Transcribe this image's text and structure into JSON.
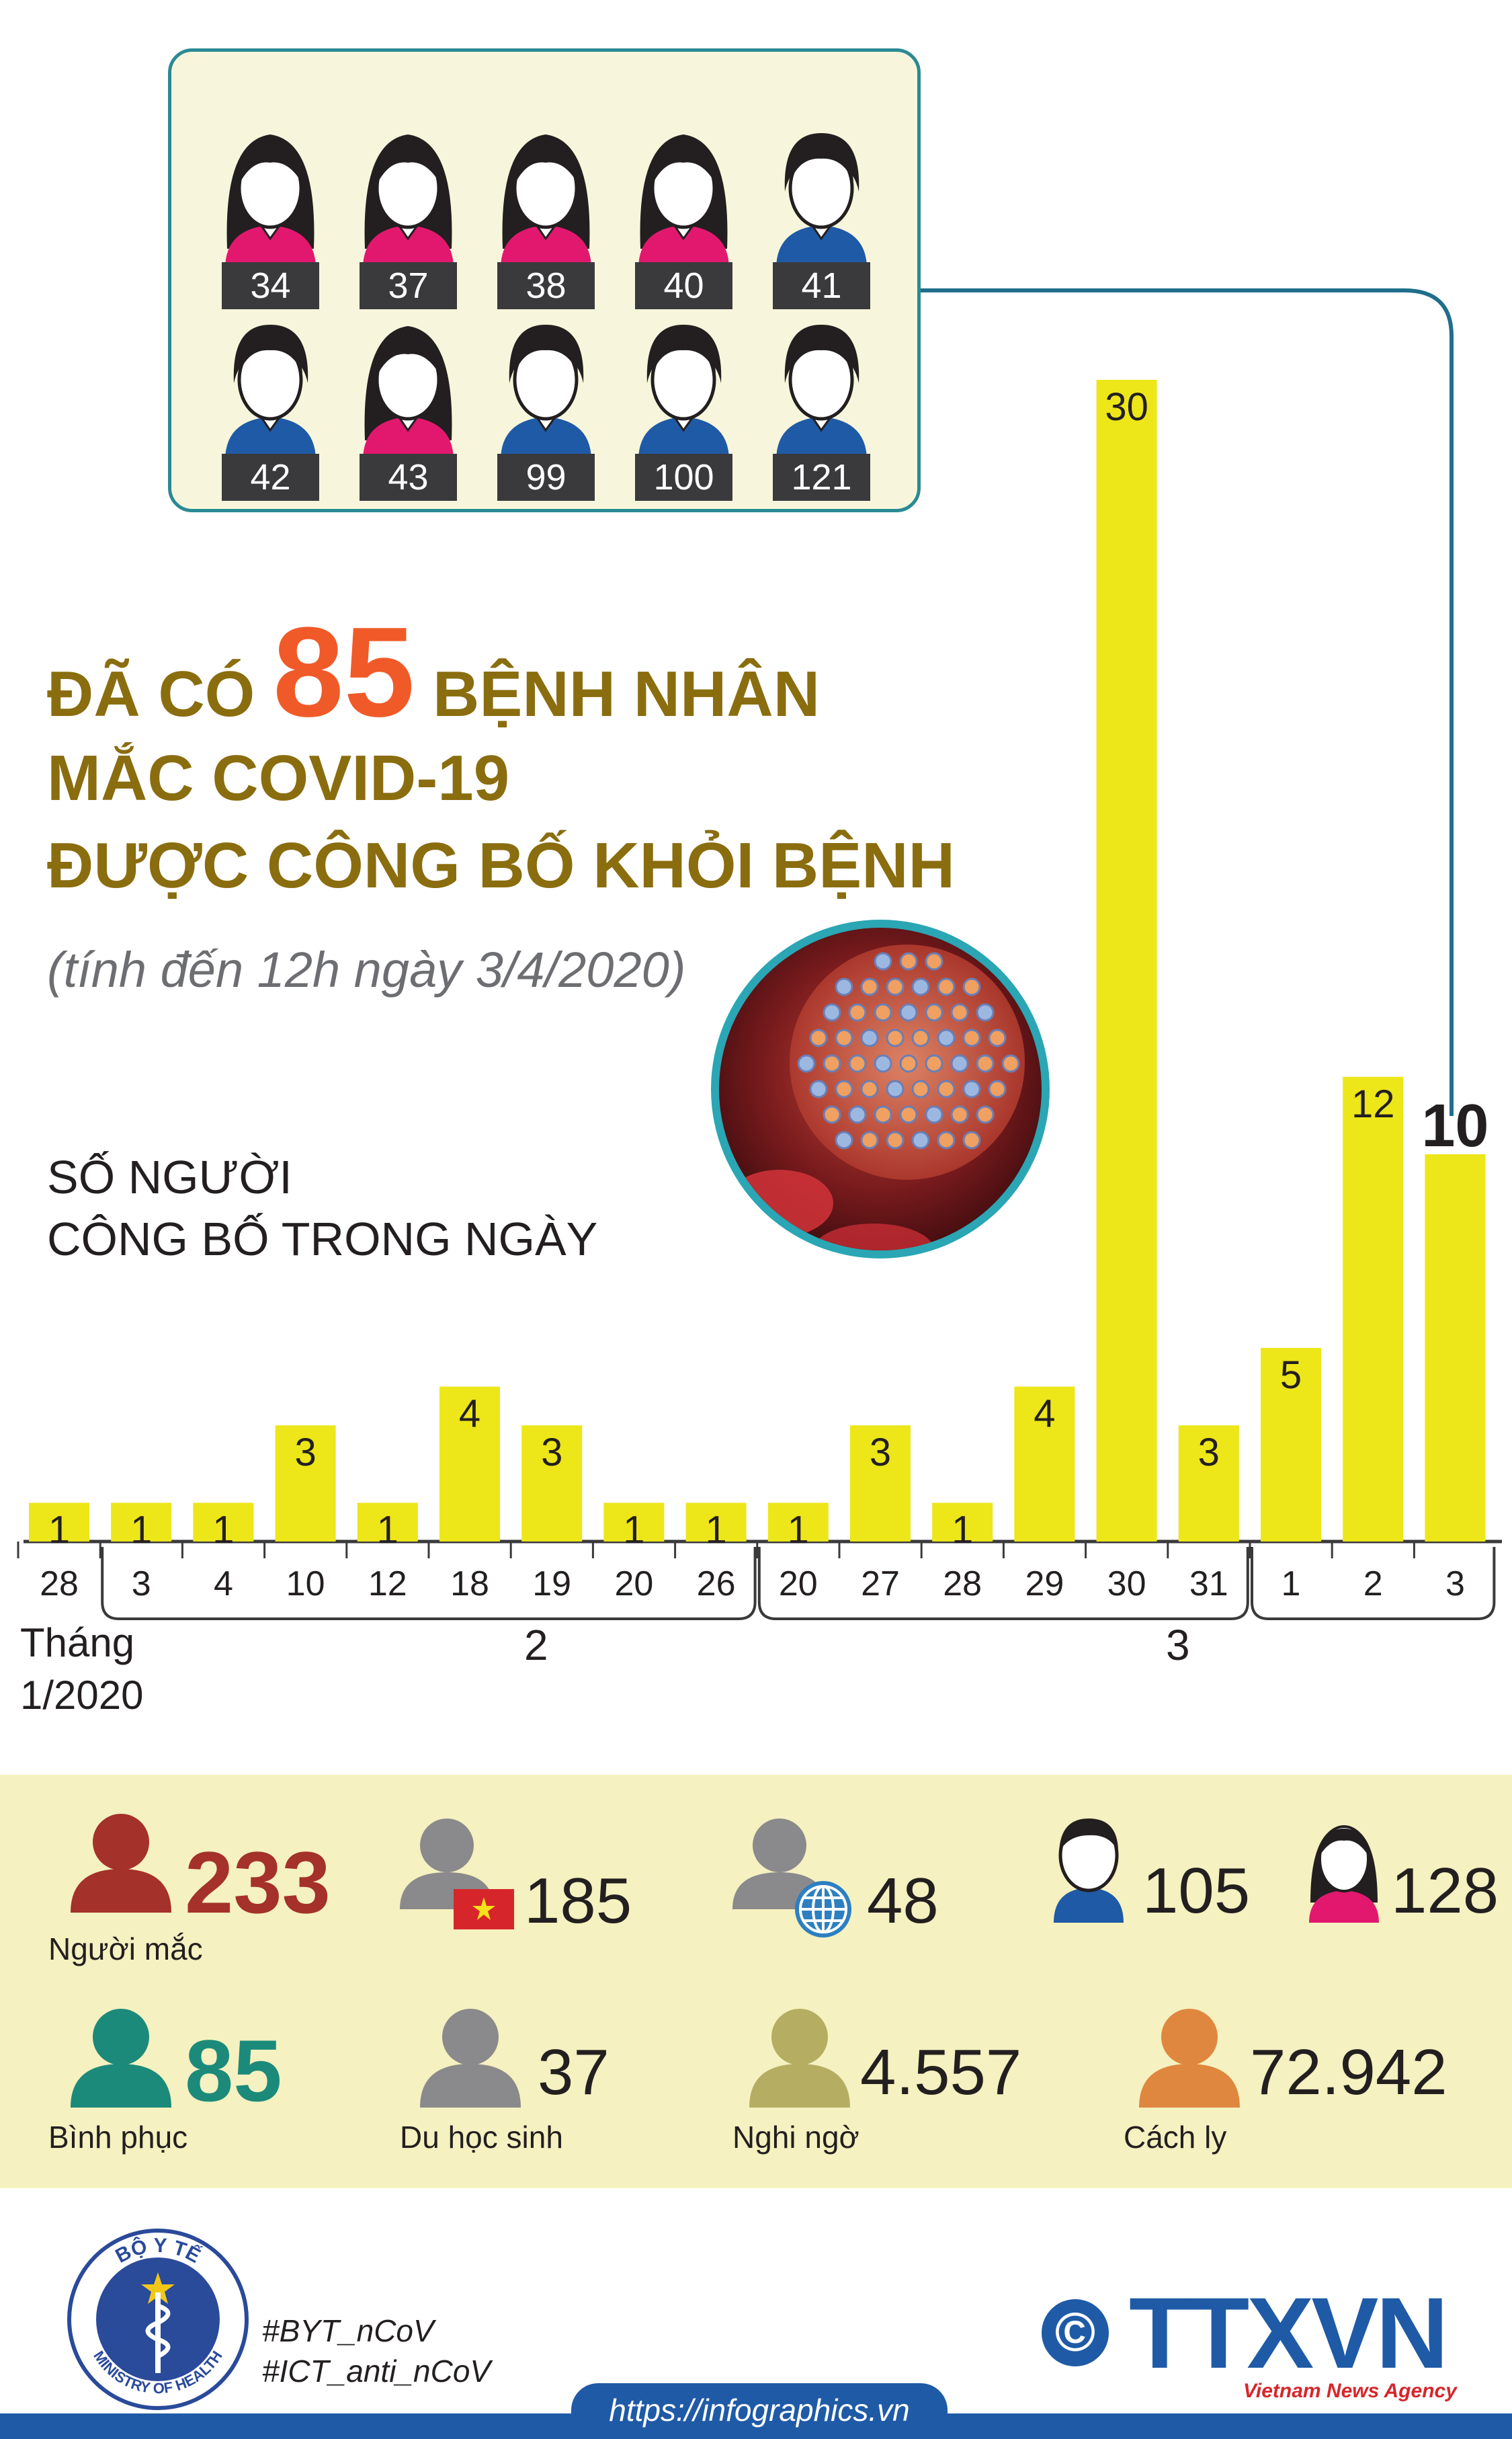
{
  "patients": [
    {
      "num": "34",
      "gender": "female"
    },
    {
      "num": "37",
      "gender": "female"
    },
    {
      "num": "38",
      "gender": "female"
    },
    {
      "num": "40",
      "gender": "female"
    },
    {
      "num": "41",
      "gender": "male"
    },
    {
      "num": "42",
      "gender": "male"
    },
    {
      "num": "43",
      "gender": "female"
    },
    {
      "num": "99",
      "gender": "male"
    },
    {
      "num": "100",
      "gender": "male"
    },
    {
      "num": "121",
      "gender": "male"
    }
  ],
  "headline": {
    "line1_a": "ĐÃ CÓ",
    "line1_num": "85",
    "line1_b": "BỆNH NHÂN",
    "line2": "MẮC COVID-19",
    "line3": "ĐƯỢC CÔNG BỐ KHỎI BỆNH"
  },
  "subtitle": "(tính đến 12h ngày 3/4/2020)",
  "chart_label": {
    "line1": "SỐ NGƯỜI",
    "line2": "CÔNG BỐ TRONG NGÀY"
  },
  "chart_data": {
    "type": "bar",
    "categories": [
      "28",
      "3",
      "4",
      "10",
      "12",
      "18",
      "19",
      "20",
      "26",
      "20",
      "27",
      "28",
      "29",
      "30",
      "31",
      "1",
      "2",
      "3"
    ],
    "values": [
      1,
      1,
      1,
      3,
      1,
      4,
      3,
      1,
      1,
      1,
      3,
      1,
      4,
      30,
      3,
      5,
      12,
      10
    ],
    "months": [
      {
        "label": "Tháng\n1/2020",
        "span": [
          0,
          0
        ]
      },
      {
        "label": "2",
        "span": [
          1,
          8
        ]
      },
      {
        "label": "3",
        "span": [
          9,
          14
        ]
      },
      {
        "label": "",
        "span": [
          15,
          17
        ]
      }
    ],
    "highlight_last": true,
    "ylim": [
      0,
      30
    ],
    "colors": {
      "bar": "#ede619",
      "axis": "#3a3a3c",
      "highlight_line": "#1f6e8c"
    }
  },
  "month_labels": {
    "jan_line1": "Tháng",
    "jan_line2": "1/2020",
    "feb": "2",
    "mar": "3"
  },
  "stats": {
    "infected": {
      "value": "233",
      "label": "Người mắc",
      "color": "#a4312a"
    },
    "domestic": {
      "value": "185"
    },
    "imported": {
      "value": "48"
    },
    "male": {
      "value": "105"
    },
    "female": {
      "value": "128"
    },
    "recovered": {
      "value": "85",
      "label": "Bình phục",
      "color": "#1c8a7a"
    },
    "students": {
      "value": "37",
      "label": "Du học sinh"
    },
    "suspected": {
      "value": "4.557",
      "label": "Nghi ngờ"
    },
    "quarantine": {
      "value": "72.942",
      "label": "Cách ly"
    }
  },
  "footer": {
    "ministry_top": "BỘ Y TẾ",
    "ministry_bottom": "MINISTRY OF HEALTH",
    "hashtag1": "#BYT_nCoV",
    "hashtag2": "#ICT_anti_nCoV",
    "url": "https://infographics.vn",
    "copyright": "©",
    "agency": "TTXVN",
    "agency_sub": "Vietnam News Agency"
  }
}
